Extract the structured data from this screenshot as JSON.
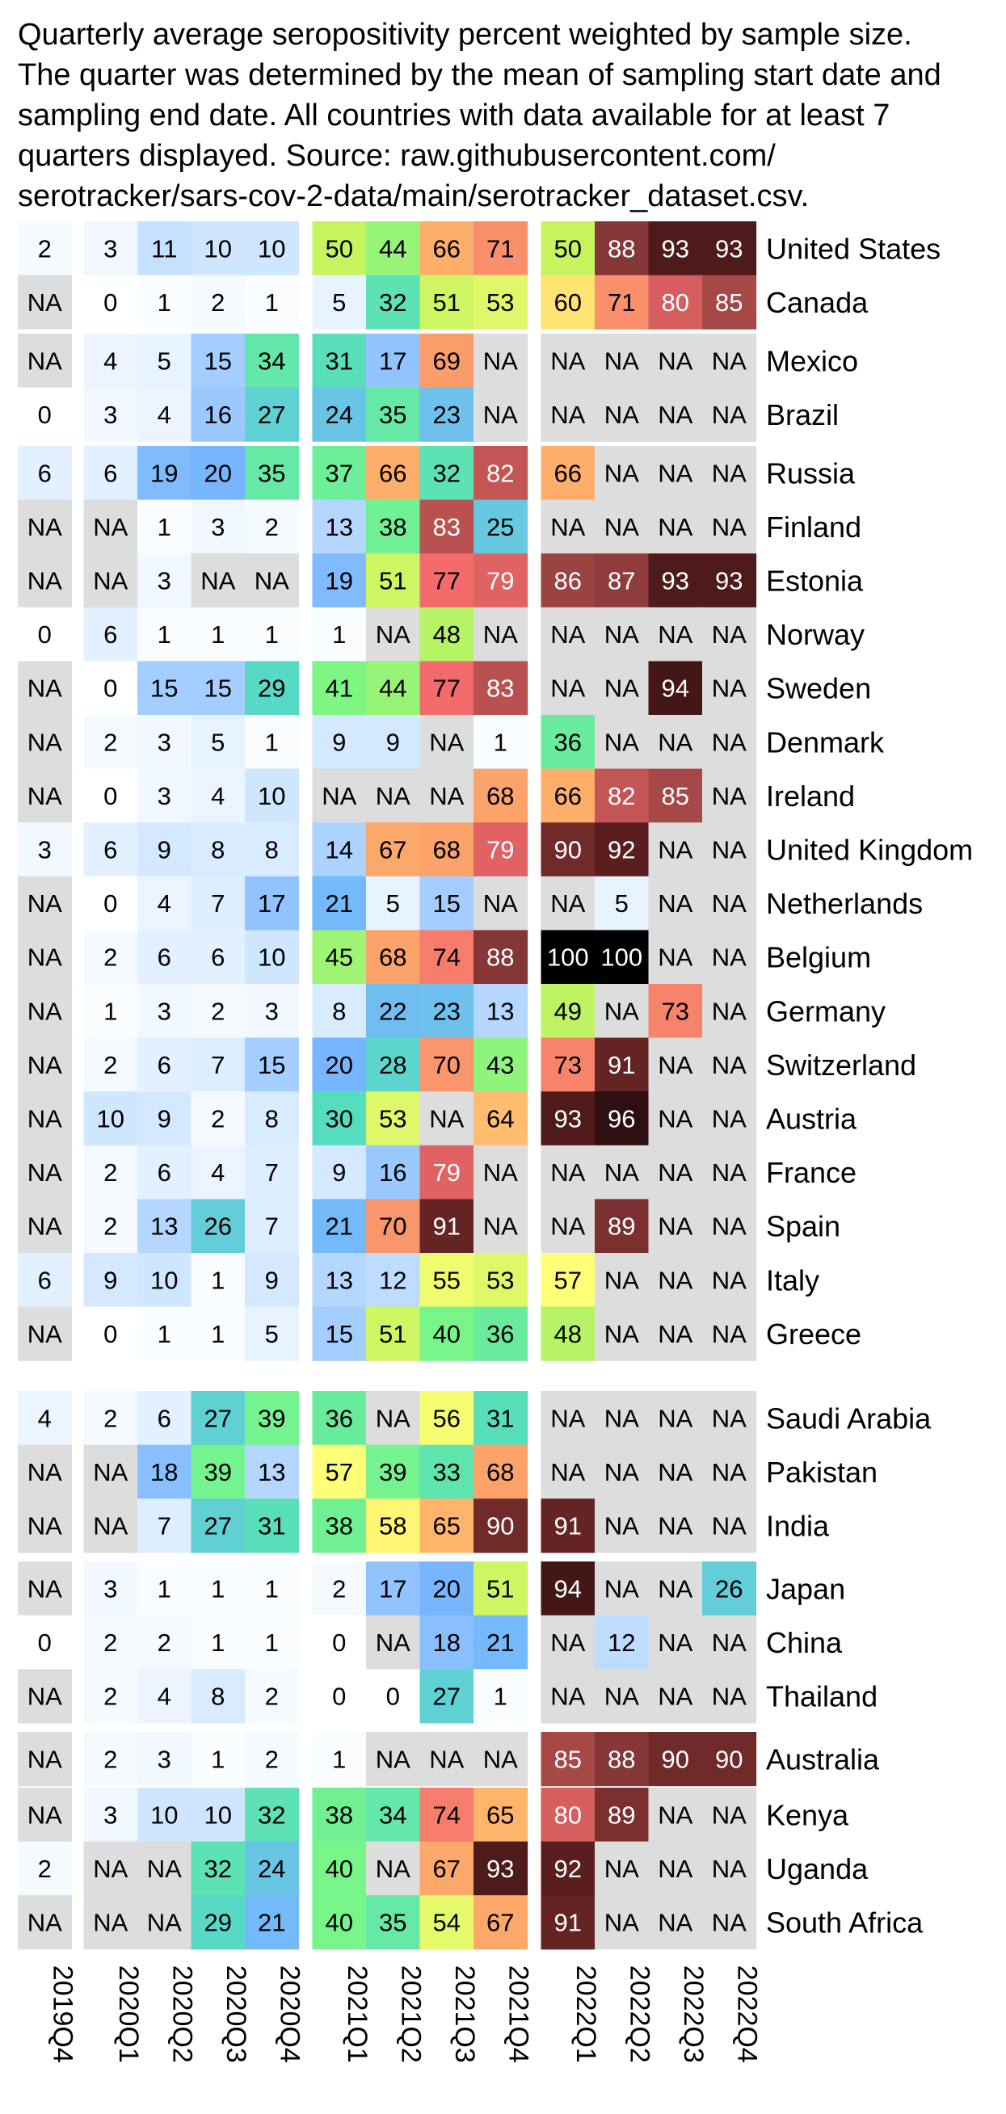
{
  "caption_lines": [
    "Quarterly average seropositivity percent weighted by sample size.",
    "The quarter was determined by the mean of sampling start date and",
    "sampling end date. All countries with data available for at least 7",
    "quarters displayed. Source: raw.githubusercontent.com/",
    "serotracker/sars-cov-2-data/main/serotracker_dataset.csv."
  ],
  "chart_data": {
    "type": "heatmap",
    "title": "",
    "quarters": [
      "2019Q4",
      "2020Q1",
      "2020Q2",
      "2020Q3",
      "2020Q4",
      "2021Q1",
      "2021Q2",
      "2021Q3",
      "2021Q4",
      "2022Q1",
      "2022Q2",
      "2022Q3",
      "2022Q4"
    ],
    "column_groups": [
      1,
      4,
      4,
      4
    ],
    "row_groups": [
      [
        {
          "country": "United States",
          "values": [
            "2",
            "3",
            "11",
            "10",
            "10",
            "50",
            "44",
            "66",
            "71",
            "50",
            "88",
            "93",
            "93"
          ]
        },
        {
          "country": "Canada",
          "values": [
            "NA",
            "0",
            "1",
            "2",
            "1",
            "5",
            "32",
            "51",
            "53",
            "60",
            "71",
            "80",
            "85"
          ]
        }
      ],
      [
        {
          "country": "Mexico",
          "values": [
            "NA",
            "4",
            "5",
            "15",
            "34",
            "31",
            "17",
            "69",
            "NA",
            "NA",
            "NA",
            "NA",
            "NA"
          ]
        },
        {
          "country": "Brazil",
          "values": [
            "0",
            "3",
            "4",
            "16",
            "27",
            "24",
            "35",
            "23",
            "NA",
            "NA",
            "NA",
            "NA",
            "NA"
          ]
        }
      ],
      [
        {
          "country": "Russia",
          "values": [
            "6",
            "6",
            "19",
            "20",
            "35",
            "37",
            "66",
            "32",
            "82",
            "66",
            "NA",
            "NA",
            "NA"
          ]
        },
        {
          "country": "Finland",
          "values": [
            "NA",
            "NA",
            "1",
            "3",
            "2",
            "13",
            "38",
            "83",
            "25",
            "NA",
            "NA",
            "NA",
            "NA"
          ]
        },
        {
          "country": "Estonia",
          "values": [
            "NA",
            "NA",
            "3",
            "NA",
            "NA",
            "19",
            "51",
            "77",
            "79",
            "86",
            "87",
            "93",
            "93"
          ]
        },
        {
          "country": "Norway",
          "values": [
            "0",
            "6",
            "1",
            "1",
            "1",
            "1",
            "NA",
            "48",
            "NA",
            "NA",
            "NA",
            "NA",
            "NA"
          ]
        },
        {
          "country": "Sweden",
          "values": [
            "NA",
            "0",
            "15",
            "15",
            "29",
            "41",
            "44",
            "77",
            "83",
            "NA",
            "NA",
            "94",
            "NA"
          ]
        },
        {
          "country": "Denmark",
          "values": [
            "NA",
            "2",
            "3",
            "5",
            "1",
            "9",
            "9",
            "NA",
            "1",
            "36",
            "NA",
            "NA",
            "NA"
          ]
        },
        {
          "country": "Ireland",
          "values": [
            "NA",
            "0",
            "3",
            "4",
            "10",
            "NA",
            "NA",
            "NA",
            "68",
            "66",
            "82",
            "85",
            "NA"
          ]
        },
        {
          "country": "United Kingdom",
          "values": [
            "3",
            "6",
            "9",
            "8",
            "8",
            "14",
            "67",
            "68",
            "79",
            "90",
            "92",
            "NA",
            "NA"
          ]
        },
        {
          "country": "Netherlands",
          "values": [
            "NA",
            "0",
            "4",
            "7",
            "17",
            "21",
            "5",
            "15",
            "NA",
            "NA",
            "5",
            "NA",
            "NA"
          ]
        },
        {
          "country": "Belgium",
          "values": [
            "NA",
            "2",
            "6",
            "6",
            "10",
            "45",
            "68",
            "74",
            "88",
            "100",
            "100",
            "NA",
            "NA"
          ]
        },
        {
          "country": "Germany",
          "values": [
            "NA",
            "1",
            "3",
            "2",
            "3",
            "8",
            "22",
            "23",
            "13",
            "49",
            "NA",
            "73",
            "NA"
          ]
        },
        {
          "country": "Switzerland",
          "values": [
            "NA",
            "2",
            "6",
            "7",
            "15",
            "20",
            "28",
            "70",
            "43",
            "73",
            "91",
            "NA",
            "NA"
          ]
        },
        {
          "country": "Austria",
          "values": [
            "NA",
            "10",
            "9",
            "2",
            "8",
            "30",
            "53",
            "NA",
            "64",
            "93",
            "96",
            "NA",
            "NA"
          ]
        },
        {
          "country": "France",
          "values": [
            "NA",
            "2",
            "6",
            "4",
            "7",
            "9",
            "16",
            "79",
            "NA",
            "NA",
            "NA",
            "NA",
            "NA"
          ]
        },
        {
          "country": "Spain",
          "values": [
            "NA",
            "2",
            "13",
            "26",
            "7",
            "21",
            "70",
            "91",
            "NA",
            "NA",
            "89",
            "NA",
            "NA"
          ]
        },
        {
          "country": "Italy",
          "values": [
            "6",
            "9",
            "10",
            "1",
            "9",
            "13",
            "12",
            "55",
            "53",
            "57",
            "NA",
            "NA",
            "NA"
          ]
        },
        {
          "country": "Greece",
          "values": [
            "NA",
            "0",
            "1",
            "1",
            "5",
            "15",
            "51",
            "40",
            "36",
            "48",
            "NA",
            "NA",
            "NA"
          ]
        }
      ],
      [
        {
          "country": "Saudi Arabia",
          "values": [
            "4",
            "2",
            "6",
            "27",
            "39",
            "36",
            "NA",
            "56",
            "31",
            "NA",
            "NA",
            "NA",
            "NA"
          ]
        },
        {
          "country": "Pakistan",
          "values": [
            "NA",
            "NA",
            "18",
            "39",
            "13",
            "57",
            "39",
            "33",
            "68",
            "NA",
            "NA",
            "NA",
            "NA"
          ]
        },
        {
          "country": "India",
          "values": [
            "NA",
            "NA",
            "7",
            "27",
            "31",
            "38",
            "58",
            "65",
            "90",
            "91",
            "NA",
            "NA",
            "NA"
          ]
        }
      ],
      [
        {
          "country": "Japan",
          "values": [
            "NA",
            "3",
            "1",
            "1",
            "1",
            "2",
            "17",
            "20",
            "51",
            "94",
            "NA",
            "NA",
            "26"
          ]
        },
        {
          "country": "China",
          "values": [
            "0",
            "2",
            "2",
            "1",
            "1",
            "0",
            "NA",
            "18",
            "21",
            "NA",
            "12",
            "NA",
            "NA"
          ]
        },
        {
          "country": "Thailand",
          "values": [
            "NA",
            "2",
            "4",
            "8",
            "2",
            "0",
            "0",
            "27",
            "1",
            "NA",
            "NA",
            "NA",
            "NA"
          ]
        }
      ],
      [
        {
          "country": "Australia",
          "values": [
            "NA",
            "2",
            "3",
            "1",
            "2",
            "1",
            "NA",
            "NA",
            "NA",
            "85",
            "88",
            "90",
            "90"
          ]
        }
      ],
      [
        {
          "country": "Kenya",
          "values": [
            "NA",
            "3",
            "10",
            "10",
            "32",
            "38",
            "34",
            "74",
            "65",
            "80",
            "89",
            "NA",
            "NA"
          ]
        },
        {
          "country": "Uganda",
          "values": [
            "2",
            "NA",
            "NA",
            "32",
            "24",
            "40",
            "NA",
            "67",
            "93",
            "92",
            "NA",
            "NA",
            "NA"
          ]
        },
        {
          "country": "South Africa",
          "values": [
            "NA",
            "NA",
            "NA",
            "29",
            "21",
            "40",
            "35",
            "54",
            "67",
            "91",
            "NA",
            "NA",
            "NA"
          ]
        }
      ]
    ],
    "colors": {
      "na": "#dddddd",
      "scale": [
        [
          0,
          "#ffffff"
        ],
        [
          10,
          "#cfe6ff"
        ],
        [
          20,
          "#77b5ff"
        ],
        [
          30,
          "#55ddc0"
        ],
        [
          40,
          "#77f588"
        ],
        [
          50,
          "#c6f35e"
        ],
        [
          57,
          "#ffff77"
        ],
        [
          65,
          "#ffb46b"
        ],
        [
          77,
          "#f36b6b"
        ],
        [
          85,
          "#a64848"
        ],
        [
          92,
          "#5a1e1e"
        ],
        [
          100,
          "#000000"
        ]
      ]
    }
  }
}
